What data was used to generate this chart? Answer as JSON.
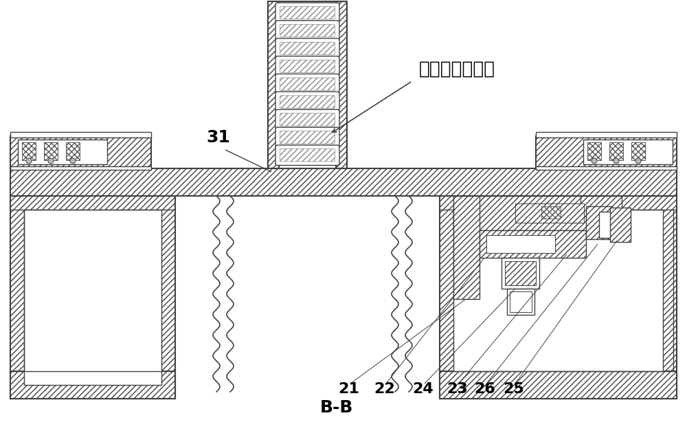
{
  "bg_color": "#ffffff",
  "lc": "#404040",
  "title_cn": "数据线金属外壳",
  "lbl_31": "31",
  "lbl_21": "21",
  "lbl_22": "22",
  "lbl_24": "24",
  "lbl_23": "23",
  "lbl_26": "26",
  "lbl_25": "25",
  "lbl_BB": "B-B",
  "fs_num": 15,
  "fs_cn": 19,
  "lw_thick": 1.5,
  "lw_med": 1.0,
  "lw_thin": 0.7
}
